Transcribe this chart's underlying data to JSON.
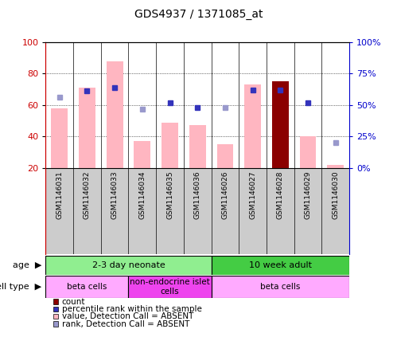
{
  "title": "GDS4937 / 1371085_at",
  "samples": [
    "GSM1146031",
    "GSM1146032",
    "GSM1146033",
    "GSM1146034",
    "GSM1146035",
    "GSM1146036",
    "GSM1146026",
    "GSM1146027",
    "GSM1146028",
    "GSM1146029",
    "GSM1146030"
  ],
  "bar_values": [
    58,
    71,
    88,
    37,
    49,
    47,
    35,
    73,
    75,
    40,
    22
  ],
  "rank_squares_pct": [
    null,
    61,
    64,
    null,
    52,
    48,
    null,
    62,
    62,
    52,
    null
  ],
  "count_bar": [
    null,
    null,
    null,
    null,
    null,
    null,
    null,
    null,
    75,
    null,
    null
  ],
  "rank_absent_pct": [
    56,
    null,
    null,
    47,
    null,
    null,
    48,
    null,
    null,
    null,
    20
  ],
  "ylim_left": [
    20,
    100
  ],
  "ylim_right": [
    0,
    100
  ],
  "left_ticks": [
    20,
    40,
    60,
    80,
    100
  ],
  "right_ticks": [
    0,
    25,
    50,
    75,
    100
  ],
  "right_tick_labels": [
    "0%",
    "25%",
    "50%",
    "75%",
    "100%"
  ],
  "age_groups": [
    {
      "label": "2-3 day neonate",
      "start": 0,
      "end": 6,
      "color": "#90EE90"
    },
    {
      "label": "10 week adult",
      "start": 6,
      "end": 11,
      "color": "#44CC44"
    }
  ],
  "cell_type_groups": [
    {
      "label": "beta cells",
      "start": 0,
      "end": 3,
      "color": "#FFAAFF"
    },
    {
      "label": "non-endocrine islet\ncells",
      "start": 3,
      "end": 6,
      "color": "#EE44EE"
    },
    {
      "label": "beta cells",
      "start": 6,
      "end": 11,
      "color": "#FFAAFF"
    }
  ],
  "bar_color_absent": "#FFB6C1",
  "count_color": "#8B0000",
  "rank_color": "#3333BB",
  "rank_absent_color": "#9999CC",
  "left_axis_color": "#CC0000",
  "right_axis_color": "#0000CC",
  "grid_color": "black",
  "col_bg_color": "#CCCCCC"
}
